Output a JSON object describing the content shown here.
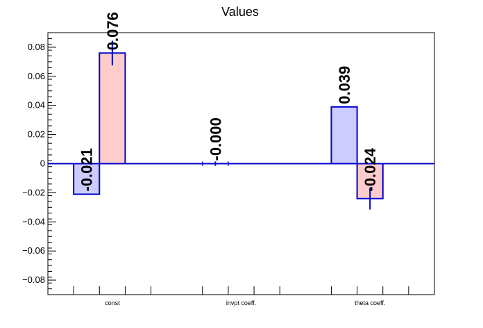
{
  "chart_data": {
    "type": "bar",
    "title": "Values",
    "categories": [
      "const",
      "invpt coeff.",
      "theta coeff."
    ],
    "bars": [
      {
        "category": "const",
        "slot": 0,
        "value": -0.021,
        "label": "-0.021",
        "error": 0.0,
        "color": "#ccccff"
      },
      {
        "category": "const",
        "slot": 1,
        "value": 0.076,
        "label": "0.076",
        "error": 0.0085,
        "color": "#ffcccc"
      },
      {
        "category": "invpt coeff.",
        "slot": 0,
        "value": 0.0,
        "label": "-0.000",
        "error": 0.0015,
        "color": "#ccccff"
      },
      {
        "category": "theta coeff.",
        "slot": 0,
        "value": 0.039,
        "label": "0.039",
        "error": 0.0,
        "color": "#ccccff"
      },
      {
        "category": "theta coeff.",
        "slot": 1,
        "value": -0.024,
        "label": "-0.024",
        "error": 0.0075,
        "color": "#ffcccc"
      }
    ],
    "ylim": [
      -0.09,
      0.09
    ],
    "yticks": [
      -0.08,
      -0.06,
      -0.04,
      -0.02,
      0,
      0.02,
      0.04,
      0.06,
      0.08
    ],
    "ytick_labels": [
      "−0.08",
      "−0.06",
      "−0.04",
      "−0.02",
      "0",
      "0.02",
      "0.04",
      "0.06",
      "0.08"
    ],
    "xlabel": "",
    "ylabel": "",
    "grid": false,
    "colors": {
      "outline": "#0000cc",
      "axis": "#000000"
    }
  }
}
